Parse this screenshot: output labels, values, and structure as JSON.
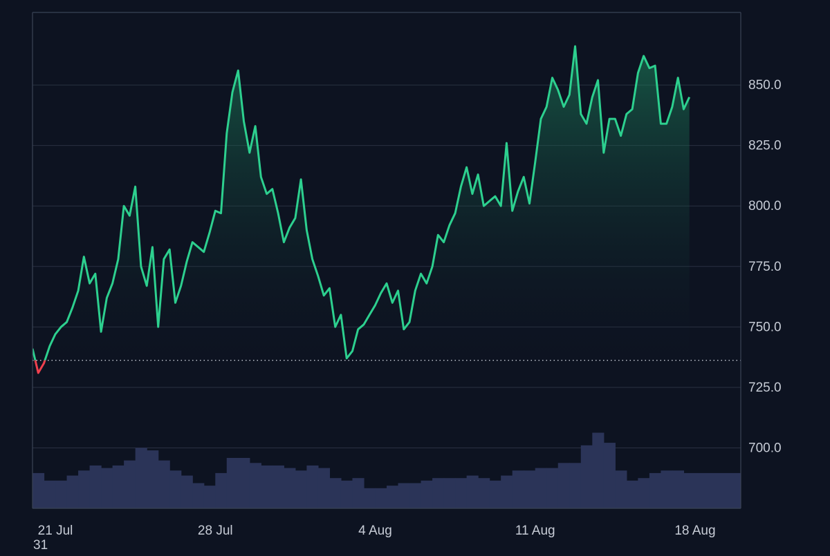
{
  "chart_data": {
    "type": "area",
    "title": "",
    "xlabel": "",
    "ylabel": "",
    "x_range": [
      "2024-07-20",
      "2024-08-20"
    ],
    "y_range": [
      675.0,
      880.0
    ],
    "y_ticks": [
      700.0,
      725.0,
      750.0,
      775.0,
      800.0,
      825.0,
      850.0
    ],
    "y_tick_labels": [
      "700.0",
      "725.0",
      "750.0",
      "775.0",
      "800.0",
      "825.0",
      "850.0"
    ],
    "x_ticks": [
      "2024-07-21",
      "2024-07-28",
      "2024-08-04",
      "2024-08-11",
      "2024-08-18"
    ],
    "x_tick_labels": [
      "21 Jul",
      "28 Jul",
      "4 Aug",
      "11 Aug",
      "18 Aug"
    ],
    "baseline": 736.2,
    "grid": true,
    "colors": {
      "above": "#2dd08f",
      "below": "#f0404e",
      "volume": "#2b3458",
      "grid": "#2a3142",
      "text": "#c7ccd6",
      "background": "#0d1321"
    },
    "series": [
      {
        "values": [
          [
            "2024-07-20T00:00",
            741
          ],
          [
            "2024-07-20T06:00",
            731
          ],
          [
            "2024-07-20T12:00",
            735
          ],
          [
            "2024-07-20T18:00",
            742
          ],
          [
            "2024-07-21T00:00",
            747
          ],
          [
            "2024-07-21T06:00",
            750
          ],
          [
            "2024-07-21T12:00",
            752
          ],
          [
            "2024-07-21T18:00",
            758
          ],
          [
            "2024-07-22T00:00",
            765
          ],
          [
            "2024-07-22T06:00",
            779
          ],
          [
            "2024-07-22T12:00",
            768
          ],
          [
            "2024-07-22T18:00",
            772
          ],
          [
            "2024-07-23T00:00",
            748
          ],
          [
            "2024-07-23T06:00",
            762
          ],
          [
            "2024-07-23T12:00",
            768
          ],
          [
            "2024-07-23T18:00",
            778
          ],
          [
            "2024-07-24T00:00",
            800
          ],
          [
            "2024-07-24T06:00",
            796
          ],
          [
            "2024-07-24T12:00",
            808
          ],
          [
            "2024-07-24T18:00",
            775
          ],
          [
            "2024-07-25T00:00",
            767
          ],
          [
            "2024-07-25T06:00",
            783
          ],
          [
            "2024-07-25T12:00",
            750
          ],
          [
            "2024-07-25T18:00",
            778
          ],
          [
            "2024-07-26T00:00",
            782
          ],
          [
            "2024-07-26T06:00",
            760
          ],
          [
            "2024-07-26T12:00",
            767
          ],
          [
            "2024-07-26T18:00",
            777
          ],
          [
            "2024-07-27T00:00",
            785
          ],
          [
            "2024-07-27T06:00",
            783
          ],
          [
            "2024-07-27T12:00",
            781
          ],
          [
            "2024-07-27T18:00",
            789
          ],
          [
            "2024-07-28T00:00",
            798
          ],
          [
            "2024-07-28T06:00",
            797
          ],
          [
            "2024-07-28T12:00",
            830
          ],
          [
            "2024-07-28T18:00",
            847
          ],
          [
            "2024-07-29T00:00",
            856
          ],
          [
            "2024-07-29T06:00",
            835
          ],
          [
            "2024-07-29T12:00",
            822
          ],
          [
            "2024-07-29T18:00",
            833
          ],
          [
            "2024-07-30T00:00",
            812
          ],
          [
            "2024-07-30T06:00",
            805
          ],
          [
            "2024-07-30T12:00",
            807
          ],
          [
            "2024-07-30T18:00",
            797
          ],
          [
            "2024-07-31T00:00",
            785
          ],
          [
            "2024-07-31T06:00",
            791
          ],
          [
            "2024-07-31T12:00",
            795
          ],
          [
            "2024-07-31T18:00",
            811
          ],
          [
            "2024-08-01T00:00",
            790
          ],
          [
            "2024-08-01T06:00",
            778
          ],
          [
            "2024-08-01T12:00",
            771
          ],
          [
            "2024-08-01T18:00",
            763
          ],
          [
            "2024-08-02T00:00",
            766
          ],
          [
            "2024-08-02T06:00",
            750
          ],
          [
            "2024-08-02T12:00",
            755
          ],
          [
            "2024-08-02T18:00",
            737
          ],
          [
            "2024-08-03T00:00",
            740
          ],
          [
            "2024-08-03T06:00",
            749
          ],
          [
            "2024-08-03T12:00",
            751
          ],
          [
            "2024-08-03T18:00",
            755
          ],
          [
            "2024-08-04T00:00",
            759
          ],
          [
            "2024-08-04T06:00",
            764
          ],
          [
            "2024-08-04T12:00",
            768
          ],
          [
            "2024-08-04T18:00",
            760
          ],
          [
            "2024-08-05T00:00",
            765
          ],
          [
            "2024-08-05T06:00",
            749
          ],
          [
            "2024-08-05T12:00",
            752
          ],
          [
            "2024-08-05T18:00",
            765
          ],
          [
            "2024-08-06T00:00",
            772
          ],
          [
            "2024-08-06T06:00",
            768
          ],
          [
            "2024-08-06T12:00",
            775
          ],
          [
            "2024-08-06T18:00",
            788
          ],
          [
            "2024-08-07T00:00",
            785
          ],
          [
            "2024-08-07T06:00",
            792
          ],
          [
            "2024-08-07T12:00",
            797
          ],
          [
            "2024-08-07T18:00",
            808
          ],
          [
            "2024-08-08T00:00",
            816
          ],
          [
            "2024-08-08T06:00",
            805
          ],
          [
            "2024-08-08T12:00",
            813
          ],
          [
            "2024-08-08T18:00",
            800
          ],
          [
            "2024-08-09T00:00",
            802
          ],
          [
            "2024-08-09T06:00",
            804
          ],
          [
            "2024-08-09T12:00",
            800
          ],
          [
            "2024-08-09T18:00",
            826
          ],
          [
            "2024-08-10T00:00",
            798
          ],
          [
            "2024-08-10T06:00",
            806
          ],
          [
            "2024-08-10T12:00",
            812
          ],
          [
            "2024-08-10T18:00",
            801
          ],
          [
            "2024-08-11T00:00",
            818
          ],
          [
            "2024-08-11T06:00",
            836
          ],
          [
            "2024-08-11T12:00",
            841
          ],
          [
            "2024-08-11T18:00",
            853
          ],
          [
            "2024-08-12T00:00",
            848
          ],
          [
            "2024-08-12T06:00",
            841
          ],
          [
            "2024-08-12T12:00",
            846
          ],
          [
            "2024-08-12T18:00",
            866
          ],
          [
            "2024-08-13T00:00",
            838
          ],
          [
            "2024-08-13T06:00",
            834
          ],
          [
            "2024-08-13T12:00",
            845
          ],
          [
            "2024-08-13T18:00",
            852
          ],
          [
            "2024-08-14T00:00",
            822
          ],
          [
            "2024-08-14T06:00",
            836
          ],
          [
            "2024-08-14T12:00",
            836
          ],
          [
            "2024-08-14T18:00",
            829
          ],
          [
            "2024-08-15T00:00",
            838
          ],
          [
            "2024-08-15T06:00",
            840
          ],
          [
            "2024-08-15T12:00",
            855
          ],
          [
            "2024-08-15T18:00",
            862
          ],
          [
            "2024-08-16T00:00",
            857
          ],
          [
            "2024-08-16T06:00",
            858
          ],
          [
            "2024-08-16T12:00",
            834
          ],
          [
            "2024-08-16T18:00",
            834
          ],
          [
            "2024-08-17T00:00",
            841
          ],
          [
            "2024-08-17T06:00",
            853
          ],
          [
            "2024-08-17T12:00",
            840
          ],
          [
            "2024-08-17T18:00",
            845
          ]
        ]
      }
    ],
    "volume": {
      "values": [
        [
          "2024-07-20T00:00",
          0.14
        ],
        [
          "2024-07-20T12:00",
          0.11
        ],
        [
          "2024-07-21T00:00",
          0.11
        ],
        [
          "2024-07-21T12:00",
          0.13
        ],
        [
          "2024-07-22T00:00",
          0.15
        ],
        [
          "2024-07-22T12:00",
          0.17
        ],
        [
          "2024-07-23T00:00",
          0.16
        ],
        [
          "2024-07-23T12:00",
          0.17
        ],
        [
          "2024-07-24T00:00",
          0.19
        ],
        [
          "2024-07-24T12:00",
          0.24
        ],
        [
          "2024-07-25T00:00",
          0.23
        ],
        [
          "2024-07-25T12:00",
          0.19
        ],
        [
          "2024-07-26T00:00",
          0.15
        ],
        [
          "2024-07-26T12:00",
          0.13
        ],
        [
          "2024-07-27T00:00",
          0.1
        ],
        [
          "2024-07-27T12:00",
          0.09
        ],
        [
          "2024-07-28T00:00",
          0.14
        ],
        [
          "2024-07-28T12:00",
          0.2
        ],
        [
          "2024-07-29T00:00",
          0.2
        ],
        [
          "2024-07-29T12:00",
          0.18
        ],
        [
          "2024-07-30T00:00",
          0.17
        ],
        [
          "2024-07-30T12:00",
          0.17
        ],
        [
          "2024-07-31T00:00",
          0.16
        ],
        [
          "2024-07-31T12:00",
          0.15
        ],
        [
          "2024-08-01T00:00",
          0.17
        ],
        [
          "2024-08-01T12:00",
          0.16
        ],
        [
          "2024-08-02T00:00",
          0.12
        ],
        [
          "2024-08-02T12:00",
          0.11
        ],
        [
          "2024-08-03T00:00",
          0.12
        ],
        [
          "2024-08-03T12:00",
          0.08
        ],
        [
          "2024-08-04T00:00",
          0.08
        ],
        [
          "2024-08-04T12:00",
          0.09
        ],
        [
          "2024-08-05T00:00",
          0.1
        ],
        [
          "2024-08-05T12:00",
          0.1
        ],
        [
          "2024-08-06T00:00",
          0.11
        ],
        [
          "2024-08-06T12:00",
          0.12
        ],
        [
          "2024-08-07T00:00",
          0.12
        ],
        [
          "2024-08-07T12:00",
          0.12
        ],
        [
          "2024-08-08T00:00",
          0.13
        ],
        [
          "2024-08-08T12:00",
          0.12
        ],
        [
          "2024-08-09T00:00",
          0.11
        ],
        [
          "2024-08-09T12:00",
          0.13
        ],
        [
          "2024-08-10T00:00",
          0.15
        ],
        [
          "2024-08-10T12:00",
          0.15
        ],
        [
          "2024-08-11T00:00",
          0.16
        ],
        [
          "2024-08-11T12:00",
          0.16
        ],
        [
          "2024-08-12T00:00",
          0.18
        ],
        [
          "2024-08-12T12:00",
          0.18
        ],
        [
          "2024-08-13T00:00",
          0.25
        ],
        [
          "2024-08-13T12:00",
          0.3
        ],
        [
          "2024-08-14T00:00",
          0.26
        ],
        [
          "2024-08-14T12:00",
          0.15
        ],
        [
          "2024-08-15T00:00",
          0.11
        ],
        [
          "2024-08-15T12:00",
          0.12
        ],
        [
          "2024-08-16T00:00",
          0.14
        ],
        [
          "2024-08-16T12:00",
          0.15
        ],
        [
          "2024-08-17T00:00",
          0.15
        ],
        [
          "2024-08-17T12:00",
          0.14
        ]
      ]
    }
  },
  "corner_label": "31"
}
